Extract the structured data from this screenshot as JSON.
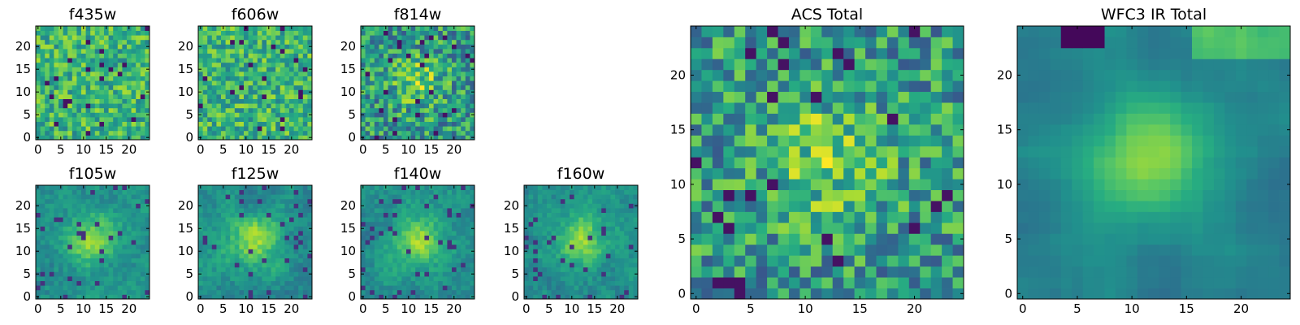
{
  "figure": {
    "type": "image-grid"
  },
  "chart_data": [
    {
      "type": "heatmap",
      "title": "f435w",
      "size": 25,
      "colormap": "viridis",
      "xticks": [
        0,
        5,
        10,
        15,
        20
      ],
      "yticks": [
        0,
        5,
        10,
        15,
        20
      ],
      "xlim": [
        -0.5,
        24.5
      ],
      "ylim": [
        -0.5,
        24.5
      ],
      "pattern": "noise",
      "seed": 11
    },
    {
      "type": "heatmap",
      "title": "f606w",
      "size": 25,
      "colormap": "viridis",
      "xticks": [
        0,
        5,
        10,
        15,
        20
      ],
      "yticks": [
        0,
        5,
        10,
        15,
        20
      ],
      "xlim": [
        -0.5,
        24.5
      ],
      "ylim": [
        -0.5,
        24.5
      ],
      "pattern": "noise",
      "seed": 23
    },
    {
      "type": "heatmap",
      "title": "f814w",
      "size": 25,
      "colormap": "viridis",
      "xticks": [
        0,
        5,
        10,
        15,
        20
      ],
      "yticks": [
        0,
        5,
        10,
        15,
        20
      ],
      "xlim": [
        -0.5,
        24.5
      ],
      "ylim": [
        -0.5,
        24.5
      ],
      "pattern": "noise-source",
      "seed": 37
    },
    {
      "type": "heatmap",
      "title": "f105w",
      "size": 25,
      "colormap": "viridis",
      "xticks": [
        0,
        5,
        10,
        15,
        20
      ],
      "yticks": [
        0,
        5,
        10,
        15,
        20
      ],
      "xlim": [
        -0.5,
        24.5
      ],
      "ylim": [
        -0.5,
        24.5
      ],
      "pattern": "source",
      "seed": 41
    },
    {
      "type": "heatmap",
      "title": "f125w",
      "size": 25,
      "colormap": "viridis",
      "xticks": [
        0,
        5,
        10,
        15,
        20
      ],
      "yticks": [
        0,
        5,
        10,
        15,
        20
      ],
      "xlim": [
        -0.5,
        24.5
      ],
      "ylim": [
        -0.5,
        24.5
      ],
      "pattern": "source",
      "seed": 53
    },
    {
      "type": "heatmap",
      "title": "f140w",
      "size": 25,
      "colormap": "viridis",
      "xticks": [
        0,
        5,
        10,
        15,
        20
      ],
      "yticks": [
        0,
        5,
        10,
        15,
        20
      ],
      "xlim": [
        -0.5,
        24.5
      ],
      "ylim": [
        -0.5,
        24.5
      ],
      "pattern": "source",
      "seed": 67
    },
    {
      "type": "heatmap",
      "title": "f160w",
      "size": 25,
      "colormap": "viridis",
      "xticks": [
        0,
        5,
        10,
        15,
        20
      ],
      "yticks": [
        0,
        5,
        10,
        15,
        20
      ],
      "xlim": [
        -0.5,
        24.5
      ],
      "ylim": [
        -0.5,
        24.5
      ],
      "pattern": "source",
      "seed": 79
    },
    {
      "type": "heatmap",
      "title": "ACS Total",
      "size": 25,
      "colormap": "viridis",
      "xticks": [
        0,
        5,
        10,
        15,
        20
      ],
      "yticks": [
        0,
        5,
        10,
        15,
        20
      ],
      "xlim": [
        -0.5,
        24.5
      ],
      "ylim": [
        -0.5,
        24.5
      ],
      "pattern": "noise-source",
      "seed": 97
    },
    {
      "type": "heatmap",
      "title": "WFC3 IR Total",
      "size": 25,
      "colormap": "viridis",
      "xticks": [
        0,
        5,
        10,
        15,
        20
      ],
      "yticks": [
        0,
        5,
        10,
        15,
        20
      ],
      "xlim": [
        -0.5,
        24.5
      ],
      "ylim": [
        -0.5,
        24.5
      ],
      "pattern": "smooth-source",
      "seed": 101
    }
  ]
}
